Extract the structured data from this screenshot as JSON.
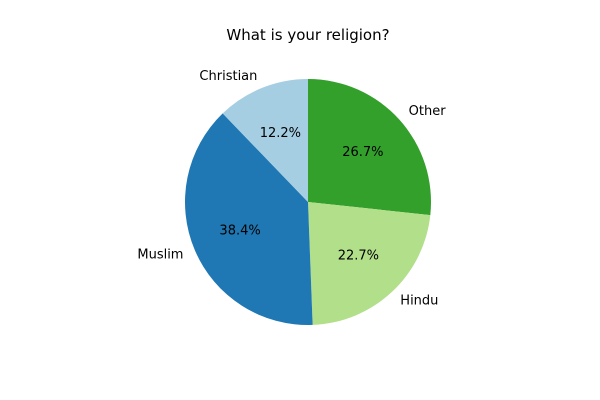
{
  "chart_data": {
    "type": "pie",
    "title": "What is your religion?",
    "slices": [
      {
        "label": "Other",
        "value": 26.7,
        "pct_label": "26.7%",
        "color": "#33a02c"
      },
      {
        "label": "Hindu",
        "value": 22.7,
        "pct_label": "22.7%",
        "color": "#b2df8a"
      },
      {
        "label": "Muslim",
        "value": 38.4,
        "pct_label": "38.4%",
        "color": "#1f78b4"
      },
      {
        "label": "Christian",
        "value": 12.2,
        "pct_label": "12.2%",
        "color": "#a6cee3"
      }
    ],
    "start_angle_deg": 90,
    "direction": "clockwise",
    "legend": "none"
  }
}
